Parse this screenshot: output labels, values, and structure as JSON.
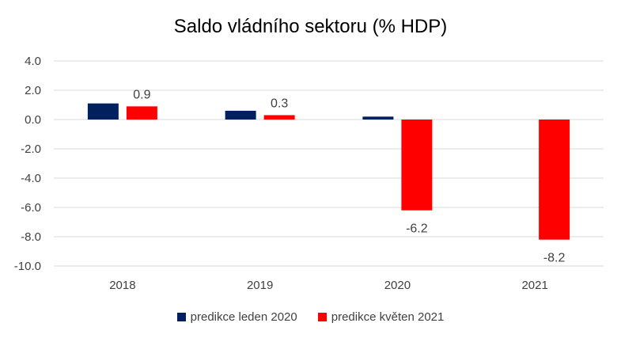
{
  "chart_data": {
    "type": "bar",
    "title": "Saldo vládního sektoru (% HDP)",
    "categories": [
      "2018",
      "2019",
      "2020",
      "2021"
    ],
    "series": [
      {
        "name": "predikce leden 2020",
        "color": "#002060",
        "values": [
          1.1,
          0.6,
          0.2,
          null
        ],
        "labels": [
          "",
          "",
          "",
          ""
        ]
      },
      {
        "name": "predikce květen 2021",
        "color": "#ff0000",
        "values": [
          0.9,
          0.3,
          -6.2,
          -8.2
        ],
        "labels": [
          "0.9",
          "0.3",
          "-6.2",
          "-8.2"
        ]
      }
    ],
    "yticks": [
      "4.0",
      "2.0",
      "0.0",
      "-2.0",
      "-4.0",
      "-6.0",
      "-8.0",
      "-10.0"
    ],
    "ylim": [
      -10,
      4
    ],
    "grid": true,
    "legend_position": "bottom"
  }
}
